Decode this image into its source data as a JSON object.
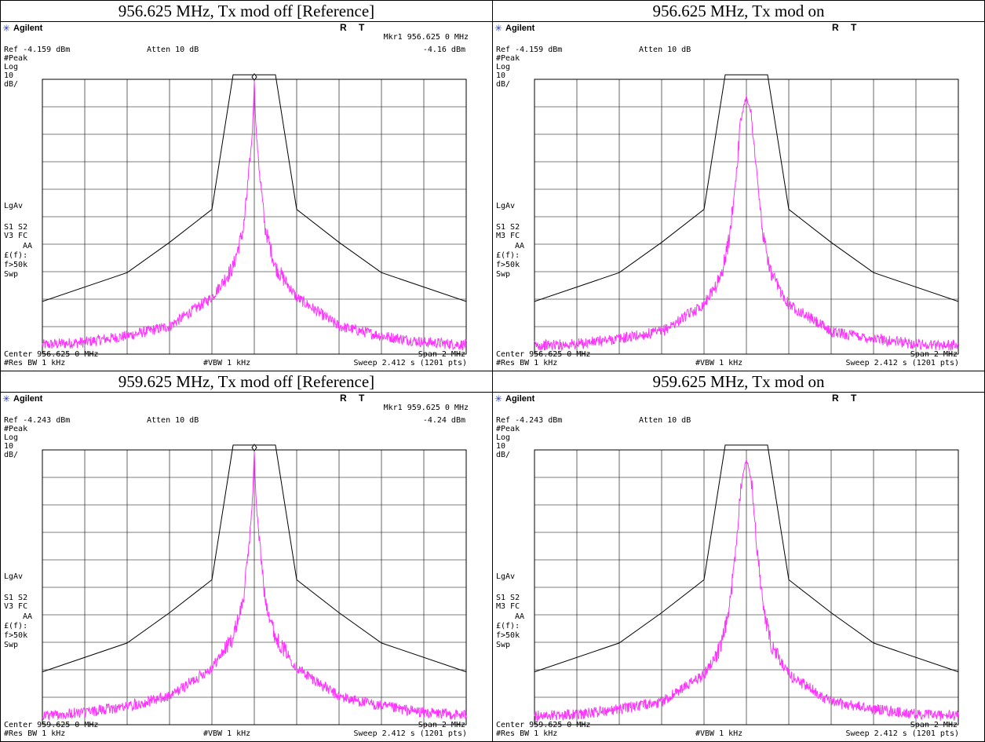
{
  "brand_colors": {
    "trace": "#ff33ff",
    "mask": "#000000",
    "grid": "#000000",
    "logo": "#1f3fbf"
  },
  "panels": [
    {
      "title": "956.625 MHz, Tx mod off  [Reference]",
      "brand": "Agilent",
      "brand_icon": "starburst-icon",
      "r_label": "R",
      "t_label": "T",
      "marker_line": "Mkr1  956.625 0 MHz",
      "marker_value": "-4.16 dBm",
      "ref": "Ref -4.159 dBm",
      "atten": "Atten 10 dB",
      "left_labels": [
        "#Peak",
        "Log",
        "10",
        "dB/"
      ],
      "lgav": "LgAv",
      "s1s2": "S1  S2",
      "mode": "V3 FC",
      "aa": "AA",
      "ff": "£(f):",
      "f50k": "f>50k",
      "swp": "Swp",
      "center": "Center 956.625 0 MHz",
      "span": "Span 2 MHz",
      "rbw": "#Res BW 1 kHz",
      "vbw": "#VBW 1 kHz",
      "sweep": "Sweep 2.412 s (1201 pts)"
    },
    {
      "title": "956.625 MHz, Tx mod on",
      "brand": "Agilent",
      "brand_icon": "starburst-icon",
      "r_label": "R",
      "t_label": "T",
      "marker_line": "",
      "marker_value": "",
      "ref": "Ref -4.159 dBm",
      "atten": "Atten 10 dB",
      "left_labels": [
        "#Peak",
        "Log",
        "10",
        "dB/"
      ],
      "lgav": "LgAv",
      "s1s2": "S1  S2",
      "mode": "M3 FC",
      "aa": "AA",
      "ff": "£(f):",
      "f50k": "f>50k",
      "swp": "Swp",
      "center": "Center 956.625 0 MHz",
      "span": "Span 2 MHz",
      "rbw": "#Res BW 1 kHz",
      "vbw": "#VBW 1 kHz",
      "sweep": "Sweep 2.412 s (1201 pts)"
    },
    {
      "title": "959.625 MHz, Tx mod off  [Reference]",
      "brand": "Agilent",
      "brand_icon": "starburst-icon",
      "r_label": "R",
      "t_label": "T",
      "marker_line": "Mkr1  959.625 0 MHz",
      "marker_value": "-4.24 dBm",
      "ref": "Ref -4.243 dBm",
      "atten": "Atten 10 dB",
      "left_labels": [
        "#Peak",
        "Log",
        "10",
        "dB/"
      ],
      "lgav": "LgAv",
      "s1s2": "S1  S2",
      "mode": "V3 FC",
      "aa": "AA",
      "ff": "£(f):",
      "f50k": "f>50k",
      "swp": "Swp",
      "center": "Center 959.625 0 MHz",
      "span": "Span 2 MHz",
      "rbw": "#Res BW 1 kHz",
      "vbw": "#VBW 1 kHz",
      "sweep": "Sweep 2.412 s (1201 pts)"
    },
    {
      "title": "959.625 MHz, Tx mod on",
      "brand": "Agilent",
      "brand_icon": "starburst-icon",
      "r_label": "R",
      "t_label": "T",
      "marker_line": "",
      "marker_value": "",
      "ref": "Ref -4.243 dBm",
      "atten": "Atten 10 dB",
      "left_labels": [
        "#Peak",
        "Log",
        "10",
        "dB/"
      ],
      "lgav": "LgAv",
      "s1s2": "S1  S2",
      "mode": "M3 FC",
      "aa": "AA",
      "ff": "£(f):",
      "f50k": "f>50k",
      "swp": "Swp",
      "center": "Center 959.625 0 MHz",
      "span": "Span 2 MHz",
      "rbw": "#Res BW 1 kHz",
      "vbw": "#VBW 1 kHz",
      "sweep": "Sweep 2.412 s (1201 pts)"
    }
  ],
  "chart_data": [
    {
      "type": "line",
      "title": "956.625 MHz, Tx mod off  [Reference]",
      "center_mhz": 956.625,
      "span_mhz": 2,
      "xlim": [
        955.625,
        957.625
      ],
      "ylim": [
        -104.159,
        -4.159
      ],
      "y_ref_dbm": -4.159,
      "y_scale_db_per_div": 10,
      "grid": true,
      "modulation": "off",
      "marker": {
        "freq_mhz": 956.625,
        "level_dbm": -4.16
      },
      "series": [
        {
          "points": [
            [
              955.625,
              -100.8
            ],
            [
              955.825,
              -99.8
            ],
            [
              956.025,
              -97.5
            ],
            [
              956.225,
              -94.0
            ],
            [
              956.425,
              -83.5
            ],
            [
              956.525,
              -72.5
            ],
            [
              956.575,
              -58.0
            ],
            [
              956.6,
              -38.0
            ],
            [
              956.615,
              -24.5
            ],
            [
              956.62,
              -16.0
            ],
            [
              956.625,
              -4.16
            ],
            [
              956.63,
              -16.0
            ],
            [
              956.635,
              -24.5
            ],
            [
              956.65,
              -38.0
            ],
            [
              956.675,
              -58.0
            ],
            [
              956.725,
              -72.5
            ],
            [
              956.825,
              -83.5
            ],
            [
              957.025,
              -94.0
            ],
            [
              957.225,
              -97.5
            ],
            [
              957.425,
              -99.8
            ],
            [
              957.625,
              -100.8
            ]
          ]
        },
        {
          "points": [
            [
              955.625,
              -85.0
            ],
            [
              956.025,
              -74.5
            ],
            [
              956.225,
              -63.5
            ],
            [
              956.425,
              -51.5
            ],
            [
              956.525,
              -2.5
            ],
            [
              956.725,
              -2.5
            ],
            [
              956.825,
              -51.5
            ],
            [
              957.025,
              -63.5
            ],
            [
              957.225,
              -74.5
            ],
            [
              957.625,
              -85.0
            ]
          ]
        }
      ]
    },
    {
      "type": "line",
      "title": "956.625 MHz, Tx mod on",
      "center_mhz": 956.625,
      "span_mhz": 2,
      "xlim": [
        955.625,
        957.625
      ],
      "ylim": [
        -104.159,
        -4.159
      ],
      "y_ref_dbm": -4.159,
      "y_scale_db_per_div": 10,
      "grid": true,
      "modulation": "on",
      "series": [
        {
          "points": [
            [
              955.625,
              -101.0
            ],
            [
              955.825,
              -100.5
            ],
            [
              956.025,
              -98.5
            ],
            [
              956.225,
              -96.0
            ],
            [
              956.425,
              -86.0
            ],
            [
              956.505,
              -76.0
            ],
            [
              956.545,
              -62.0
            ],
            [
              956.575,
              -40.0
            ],
            [
              956.6,
              -18.0
            ],
            [
              956.625,
              -10.0
            ],
            [
              956.65,
              -18.0
            ],
            [
              956.675,
              -40.0
            ],
            [
              956.705,
              -62.0
            ],
            [
              956.745,
              -76.0
            ],
            [
              956.825,
              -86.0
            ],
            [
              957.025,
              -96.0
            ],
            [
              957.225,
              -98.5
            ],
            [
              957.425,
              -100.5
            ],
            [
              957.625,
              -101.0
            ]
          ]
        },
        {
          "points": [
            [
              955.625,
              -85.0
            ],
            [
              956.025,
              -74.5
            ],
            [
              956.225,
              -63.5
            ],
            [
              956.425,
              -51.5
            ],
            [
              956.525,
              -2.5
            ],
            [
              956.725,
              -2.5
            ],
            [
              956.825,
              -51.5
            ],
            [
              957.025,
              -63.5
            ],
            [
              957.225,
              -74.5
            ],
            [
              957.625,
              -85.0
            ]
          ]
        }
      ]
    },
    {
      "type": "line",
      "title": "959.625 MHz, Tx mod off  [Reference]",
      "center_mhz": 959.625,
      "span_mhz": 2,
      "xlim": [
        958.625,
        960.625
      ],
      "ylim": [
        -104.243,
        -4.243
      ],
      "y_ref_dbm": -4.243,
      "y_scale_db_per_div": 10,
      "grid": true,
      "modulation": "off",
      "marker": {
        "freq_mhz": 959.625,
        "level_dbm": -4.24
      },
      "series": [
        {
          "points": [
            [
              958.625,
              -100.8
            ],
            [
              958.825,
              -99.8
            ],
            [
              959.025,
              -97.5
            ],
            [
              959.225,
              -94.0
            ],
            [
              959.425,
              -83.5
            ],
            [
              959.525,
              -72.5
            ],
            [
              959.575,
              -58.0
            ],
            [
              959.6,
              -38.0
            ],
            [
              959.615,
              -24.5
            ],
            [
              959.62,
              -16.0
            ],
            [
              959.625,
              -4.24
            ],
            [
              959.63,
              -16.0
            ],
            [
              959.635,
              -24.5
            ],
            [
              959.65,
              -38.0
            ],
            [
              959.675,
              -58.0
            ],
            [
              959.725,
              -72.5
            ],
            [
              959.825,
              -83.5
            ],
            [
              960.025,
              -94.0
            ],
            [
              960.225,
              -97.5
            ],
            [
              960.425,
              -99.8
            ],
            [
              960.625,
              -100.8
            ]
          ]
        },
        {
          "points": [
            [
              958.625,
              -85.0
            ],
            [
              959.025,
              -74.5
            ],
            [
              959.225,
              -63.5
            ],
            [
              959.425,
              -51.5
            ],
            [
              959.525,
              -2.5
            ],
            [
              959.725,
              -2.5
            ],
            [
              959.825,
              -51.5
            ],
            [
              960.025,
              -63.5
            ],
            [
              960.225,
              -74.5
            ],
            [
              960.625,
              -85.0
            ]
          ]
        }
      ]
    },
    {
      "type": "line",
      "title": "959.625 MHz, Tx mod on",
      "center_mhz": 959.625,
      "span_mhz": 2,
      "xlim": [
        958.625,
        960.625
      ],
      "ylim": [
        -104.243,
        -4.243
      ],
      "y_ref_dbm": -4.243,
      "y_scale_db_per_div": 10,
      "grid": true,
      "modulation": "on",
      "series": [
        {
          "points": [
            [
              958.625,
              -101.0
            ],
            [
              958.825,
              -100.5
            ],
            [
              959.025,
              -98.5
            ],
            [
              959.225,
              -96.0
            ],
            [
              959.425,
              -86.0
            ],
            [
              959.505,
              -76.0
            ],
            [
              959.545,
              -62.0
            ],
            [
              959.575,
              -40.0
            ],
            [
              959.6,
              -16.0
            ],
            [
              959.625,
              -7.5
            ],
            [
              959.65,
              -16.0
            ],
            [
              959.675,
              -40.0
            ],
            [
              959.705,
              -62.0
            ],
            [
              959.745,
              -76.0
            ],
            [
              959.825,
              -86.0
            ],
            [
              960.025,
              -96.0
            ],
            [
              960.225,
              -98.5
            ],
            [
              960.425,
              -100.5
            ],
            [
              960.625,
              -101.0
            ]
          ]
        },
        {
          "points": [
            [
              958.625,
              -85.0
            ],
            [
              959.025,
              -74.5
            ],
            [
              959.225,
              -63.5
            ],
            [
              959.425,
              -51.5
            ],
            [
              959.525,
              -2.5
            ],
            [
              959.725,
              -2.5
            ],
            [
              959.825,
              -51.5
            ],
            [
              960.025,
              -63.5
            ],
            [
              960.225,
              -74.5
            ],
            [
              960.625,
              -85.0
            ]
          ]
        }
      ]
    }
  ]
}
